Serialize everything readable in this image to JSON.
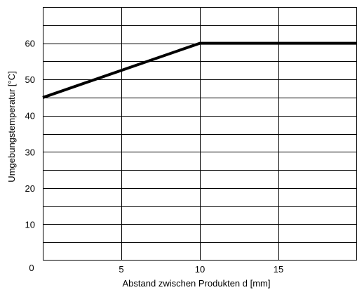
{
  "chart_data": {
    "type": "line",
    "xlabel": "Abstand zwischen Produkten d [mm]",
    "ylabel": "Umgebungstemperatur [°C]",
    "xlim": [
      0,
      20
    ],
    "ylim": [
      0,
      70
    ],
    "x_ticks": [
      {
        "value": 0,
        "label": "0"
      },
      {
        "value": 5,
        "label": "5"
      },
      {
        "value": 10,
        "label": "10"
      },
      {
        "value": 15,
        "label": "15"
      }
    ],
    "y_ticks": [
      {
        "value": 10,
        "label": "10"
      },
      {
        "value": 20,
        "label": "20"
      },
      {
        "value": 30,
        "label": "30"
      },
      {
        "value": 40,
        "label": "40"
      },
      {
        "value": 50,
        "label": "50"
      },
      {
        "value": 60,
        "label": "60"
      }
    ],
    "x_gridlines": [
      5,
      10,
      15
    ],
    "y_gridlines": [
      5,
      10,
      15,
      20,
      25,
      30,
      35,
      40,
      45,
      50,
      55,
      60,
      65
    ],
    "grid": true,
    "series": [
      {
        "x": [
          0,
          10,
          20
        ],
        "y": [
          45,
          60,
          60
        ],
        "color": "#000000"
      }
    ]
  }
}
